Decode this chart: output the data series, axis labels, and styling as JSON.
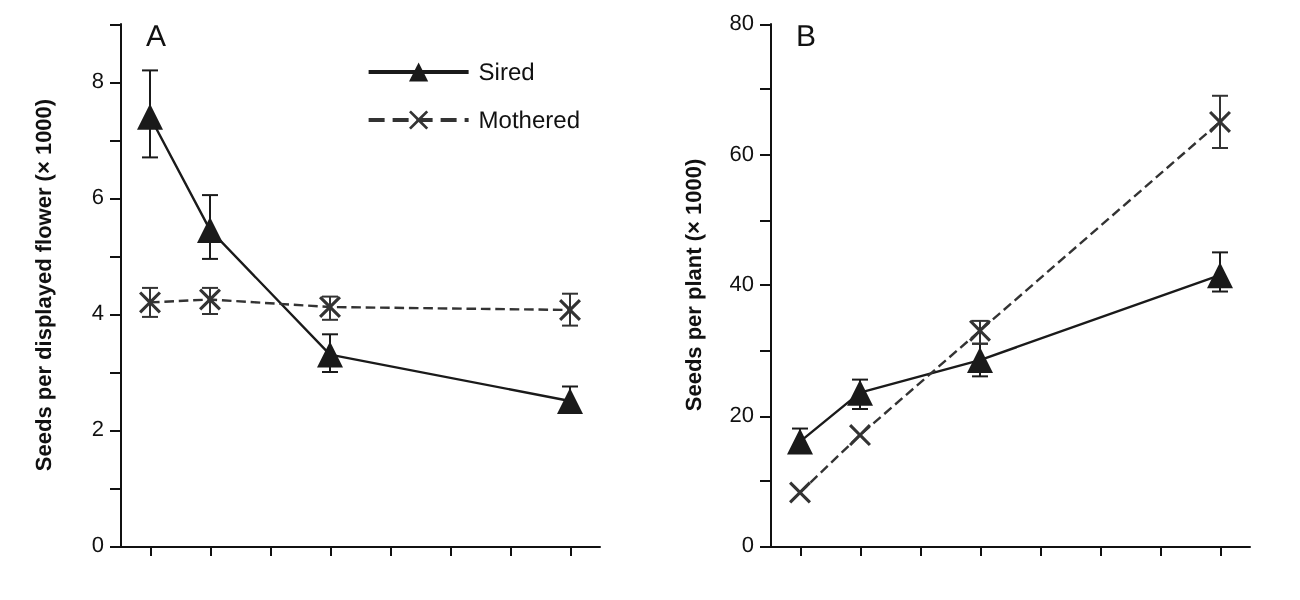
{
  "chart_data": [
    {
      "type": "line",
      "title": "A",
      "ylabel": "Seeds per displayed flower (× 1000)",
      "categories": [
        null,
        null,
        null,
        null,
        null,
        null,
        null,
        null
      ],
      "ylim": [
        0,
        9
      ],
      "yticks": [
        0,
        {
          "value": 1,
          "label": null
        },
        2,
        {
          "value": 3,
          "label": null
        },
        4,
        {
          "value": 5,
          "label": null
        },
        6,
        {
          "value": 7,
          "label": null
        },
        8,
        {
          "value": 9,
          "label": null
        }
      ],
      "tick_labels": "y",
      "grid": false,
      "legend": "top right",
      "series": [
        {
          "name": "Sired",
          "color": "#1a1a1a",
          "marker": "triangle",
          "line_style": "solid",
          "values": [
            7.4,
            5.45,
            null,
            3.3,
            null,
            null,
            null,
            2.5
          ],
          "errors": [
            [
              6.7,
              8.2
            ],
            [
              4.95,
              6.05
            ],
            null,
            [
              3.0,
              3.65
            ],
            null,
            null,
            null,
            [
              2.3,
              2.75
            ]
          ]
        },
        {
          "name": "Mothered",
          "color": "#333333",
          "marker": "cross",
          "line_style": "dashed",
          "values": [
            4.2,
            4.25,
            null,
            4.12,
            null,
            null,
            null,
            4.07
          ],
          "errors": [
            [
              3.95,
              4.45
            ],
            [
              4.0,
              4.45
            ],
            null,
            [
              3.9,
              4.3
            ],
            null,
            null,
            null,
            [
              3.8,
              4.35
            ]
          ]
        }
      ]
    },
    {
      "type": "line",
      "title": "B",
      "ylabel": "Seeds per plant (× 1000)",
      "categories": [
        null,
        null,
        null,
        null,
        null,
        null,
        null,
        null
      ],
      "ylim": [
        0,
        80
      ],
      "yticks": [
        0,
        {
          "value": 10,
          "label": null
        },
        20,
        {
          "value": 30,
          "label": null
        },
        40,
        {
          "value": 50,
          "label": null
        },
        60,
        {
          "value": 70,
          "label": null
        },
        80
      ],
      "tick_labels": "y",
      "grid": false,
      "series": [
        {
          "color": "#1a1a1a",
          "marker": "triangle",
          "line_style": "solid",
          "values": [
            16,
            23.5,
            null,
            28.5,
            null,
            null,
            null,
            41.5
          ],
          "errors": [
            [
              14.5,
              18
            ],
            [
              21,
              25.5
            ],
            null,
            [
              26,
              31
            ],
            null,
            null,
            null,
            [
              39,
              45
            ]
          ]
        },
        {
          "color": "#333333",
          "marker": "cross",
          "line_style": "dashed",
          "values": [
            8.2,
            17,
            null,
            33,
            null,
            null,
            null,
            65
          ],
          "errors": [
            null,
            null,
            null,
            [
              31,
              34.5
            ],
            null,
            null,
            null,
            [
              61,
              69
            ]
          ]
        }
      ]
    }
  ]
}
